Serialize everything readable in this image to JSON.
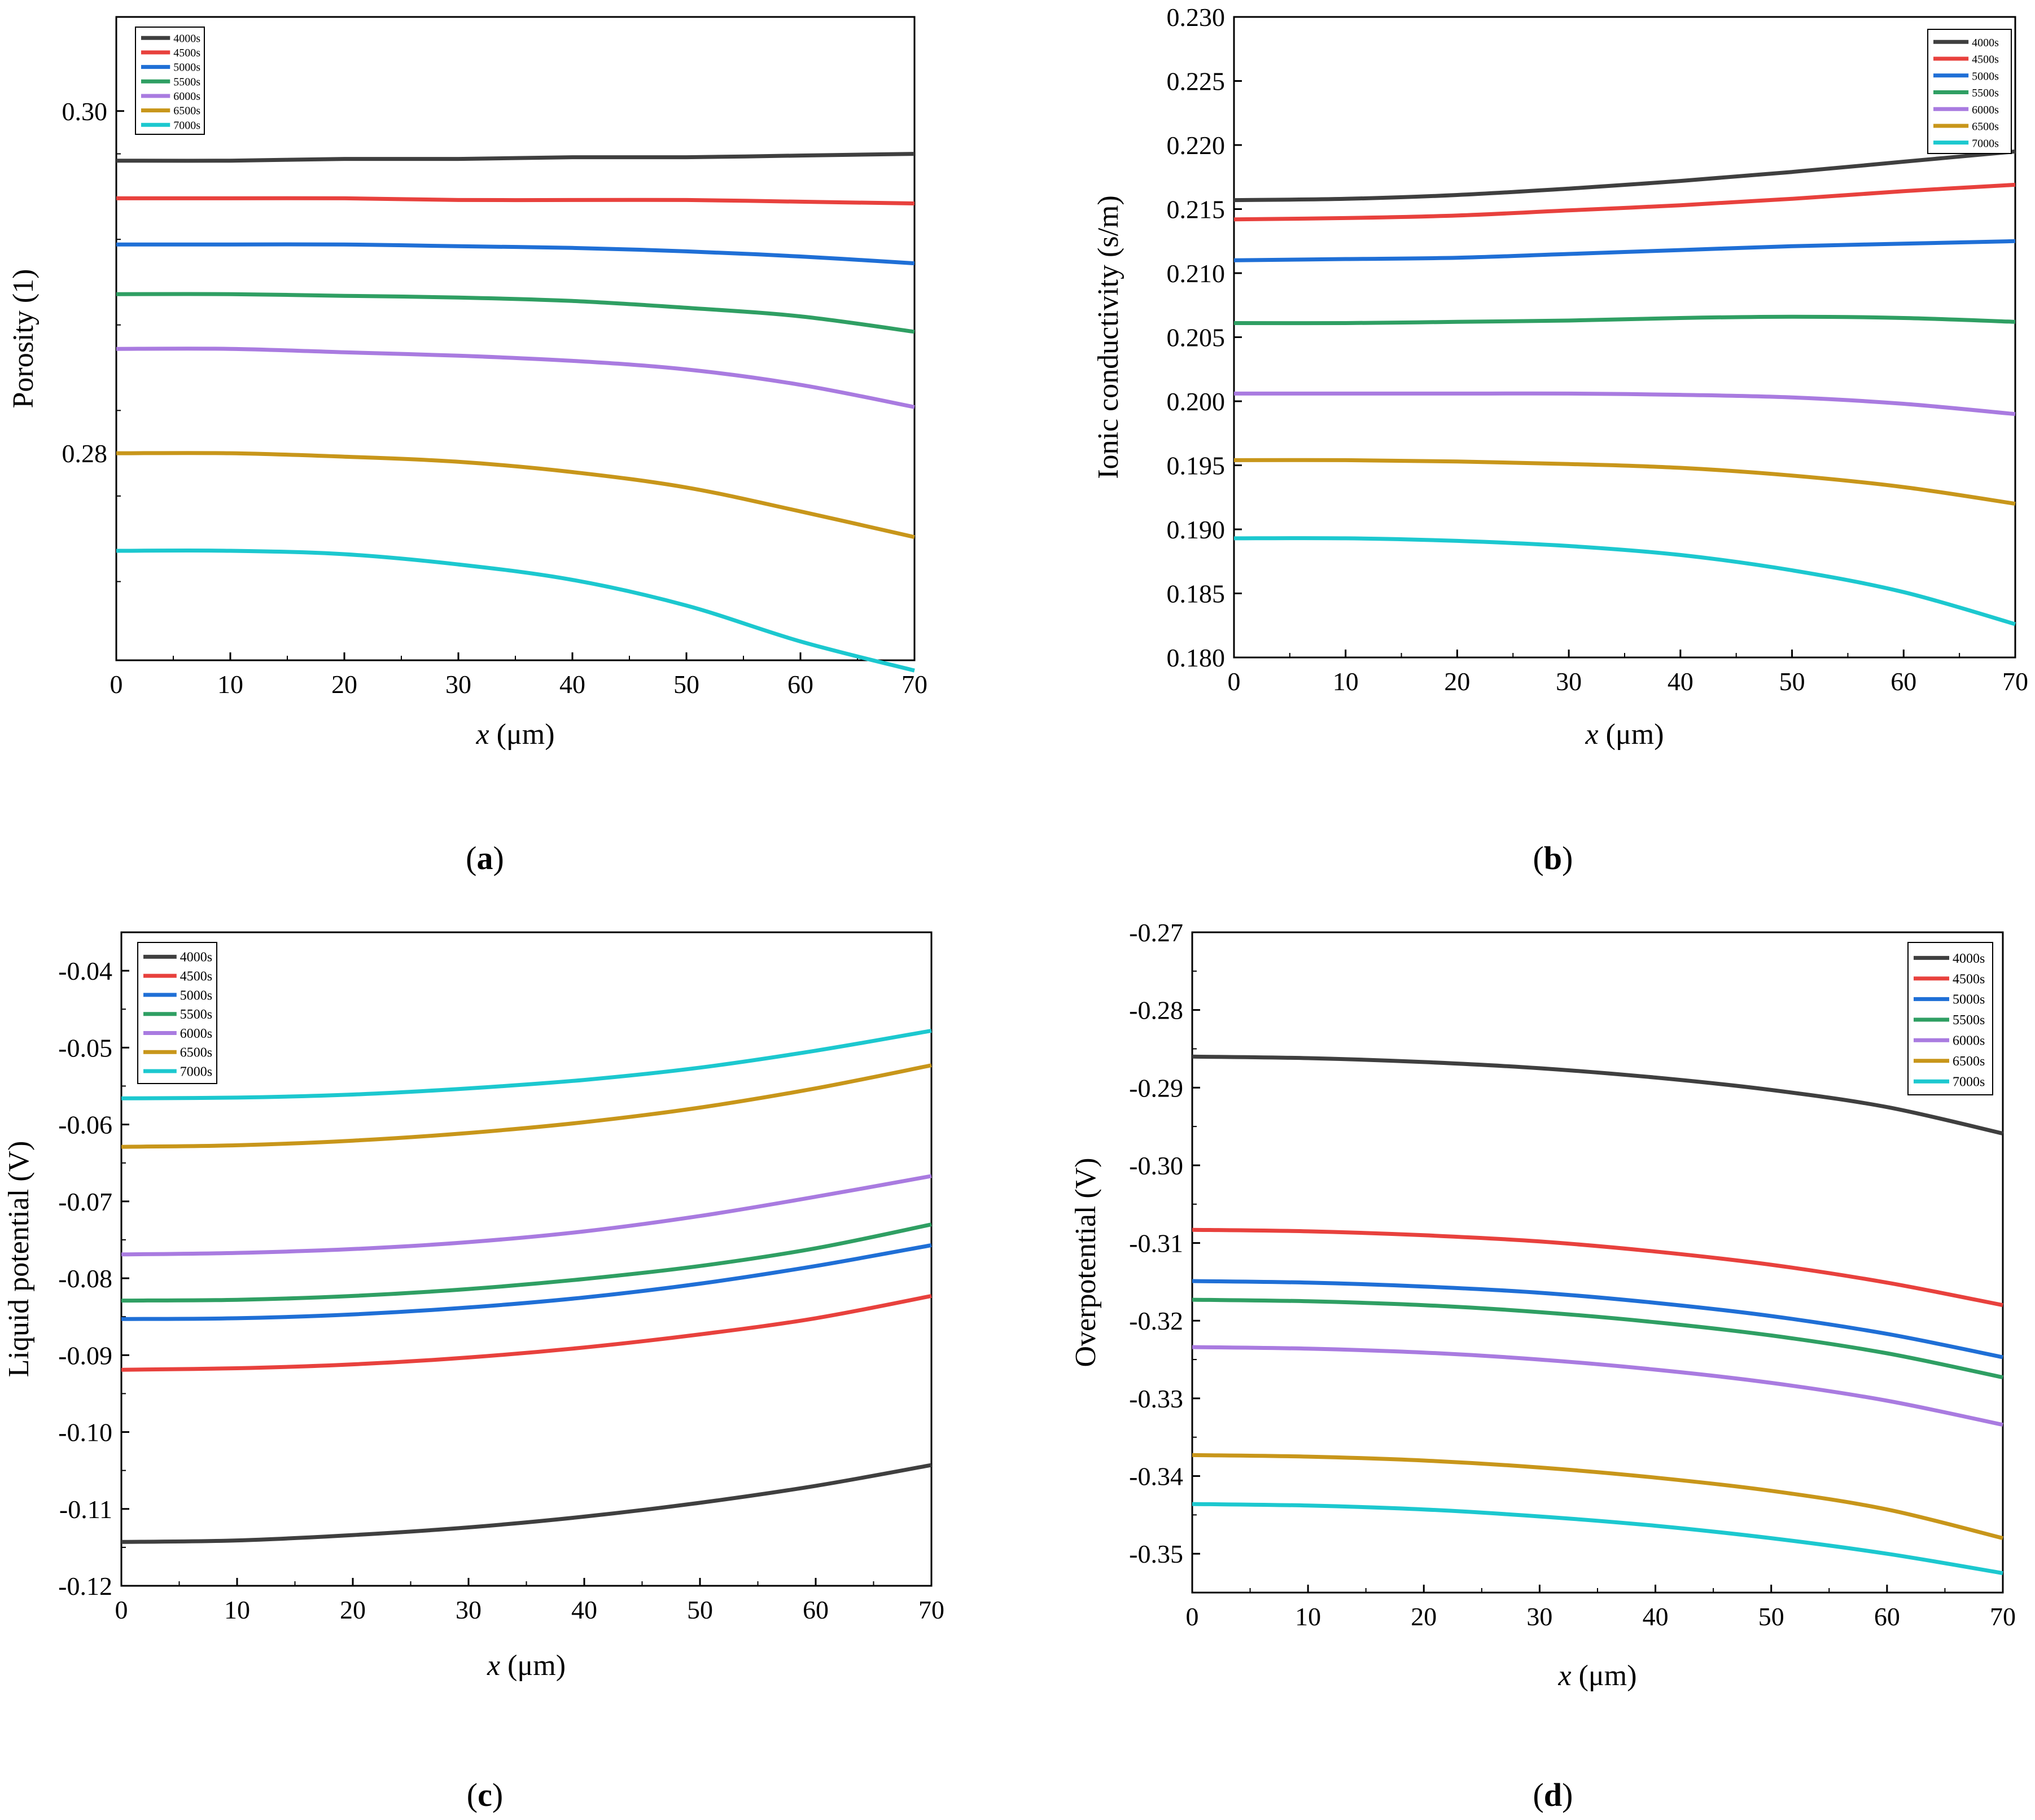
{
  "colors": {
    "4000s": "#3f3f3f",
    "4500s": "#e8413d",
    "5000s": "#1f6fd6",
    "5500s": "#2f9f63",
    "6000s": "#a97be0",
    "6500s": "#c8961a",
    "7000s": "#1cc8cf"
  },
  "chart_data": [
    {
      "id": "a",
      "type": "line",
      "panel_label": "(a)",
      "title": "",
      "xlabel": "x (μm)",
      "ylabel": "Porosity (1)",
      "xlim": [
        0,
        70
      ],
      "ylim": [
        0.2679,
        0.3055
      ],
      "xticks": [
        0,
        10,
        20,
        30,
        40,
        50,
        60,
        70
      ],
      "yticks": [
        0.28,
        0.3
      ],
      "ytick_labels": [
        "0.28",
        "0.30"
      ],
      "yminor": [
        0.2725,
        0.2775,
        0.2825,
        0.2875,
        0.2925,
        0.2975
      ],
      "legend_position": "top-left",
      "x": [
        0,
        10,
        20,
        30,
        40,
        50,
        60,
        70
      ],
      "series": [
        {
          "name": "4000s",
          "values": [
            0.2971,
            0.2971,
            0.2972,
            0.2972,
            0.2973,
            0.2973,
            0.2974,
            0.2975
          ]
        },
        {
          "name": "4500s",
          "values": [
            0.2949,
            0.2949,
            0.2949,
            0.2948,
            0.2948,
            0.2948,
            0.2947,
            0.2946
          ]
        },
        {
          "name": "5000s",
          "values": [
            0.2922,
            0.2922,
            0.2922,
            0.2921,
            0.292,
            0.2918,
            0.2915,
            0.2911
          ]
        },
        {
          "name": "5500s",
          "values": [
            0.2893,
            0.2893,
            0.2892,
            0.2891,
            0.2889,
            0.2885,
            0.288,
            0.2871
          ]
        },
        {
          "name": "6000s",
          "values": [
            0.2861,
            0.2861,
            0.2859,
            0.2857,
            0.2854,
            0.2849,
            0.284,
            0.2827
          ]
        },
        {
          "name": "6500s",
          "values": [
            0.28,
            0.28,
            0.2798,
            0.2795,
            0.2789,
            0.278,
            0.2766,
            0.2751
          ]
        },
        {
          "name": "7000s",
          "values": [
            0.2743,
            0.2743,
            0.2741,
            0.2735,
            0.2726,
            0.2711,
            0.269,
            0.2673
          ]
        }
      ]
    },
    {
      "id": "b",
      "type": "line",
      "panel_label": "(b)",
      "title": "",
      "xlabel": "x (μm)",
      "ylabel": "Ionic conductivity (s/m)",
      "xlim": [
        0,
        70
      ],
      "ylim": [
        0.18,
        0.23
      ],
      "xticks": [
        0,
        10,
        20,
        30,
        40,
        50,
        60,
        70
      ],
      "yticks": [
        0.18,
        0.185,
        0.19,
        0.195,
        0.2,
        0.205,
        0.21,
        0.215,
        0.22,
        0.225,
        0.23
      ],
      "ytick_labels": [
        "0.180",
        "0.185",
        "0.190",
        "0.195",
        "0.200",
        "0.205",
        "0.210",
        "0.215",
        "0.220",
        "0.225",
        "0.230"
      ],
      "yminor": [],
      "legend_position": "top-right",
      "x": [
        0,
        10,
        20,
        30,
        40,
        50,
        60,
        70
      ],
      "series": [
        {
          "name": "4000s",
          "values": [
            0.2157,
            0.2158,
            0.2161,
            0.2166,
            0.2172,
            0.2179,
            0.2187,
            0.2195
          ]
        },
        {
          "name": "4500s",
          "values": [
            0.2142,
            0.2143,
            0.2145,
            0.2149,
            0.2153,
            0.2158,
            0.2164,
            0.2169
          ]
        },
        {
          "name": "5000s",
          "values": [
            0.211,
            0.2111,
            0.2112,
            0.2115,
            0.2118,
            0.2121,
            0.2123,
            0.2125
          ]
        },
        {
          "name": "5500s",
          "values": [
            0.2061,
            0.2061,
            0.2062,
            0.2063,
            0.2065,
            0.2066,
            0.2065,
            0.2062
          ]
        },
        {
          "name": "6000s",
          "values": [
            0.2006,
            0.2006,
            0.2006,
            0.2006,
            0.2005,
            0.2003,
            0.1998,
            0.199
          ]
        },
        {
          "name": "6500s",
          "values": [
            0.1954,
            0.1954,
            0.1953,
            0.1951,
            0.1948,
            0.1942,
            0.1933,
            0.192
          ]
        },
        {
          "name": "7000s",
          "values": [
            0.1893,
            0.1893,
            0.1891,
            0.1887,
            0.188,
            0.1868,
            0.1851,
            0.1826
          ]
        }
      ]
    },
    {
      "id": "c",
      "type": "line",
      "panel_label": "(c)",
      "title": "",
      "xlabel": "x (μm)",
      "ylabel": "Liquid potential (V)",
      "xlim": [
        0,
        70
      ],
      "ylim": [
        -0.12,
        -0.035
      ],
      "xticks": [
        0,
        10,
        20,
        30,
        40,
        50,
        60,
        70
      ],
      "yticks": [
        -0.12,
        -0.11,
        -0.1,
        -0.09,
        -0.08,
        -0.07,
        -0.06,
        -0.05,
        -0.04
      ],
      "ytick_labels": [
        "-0.12",
        "-0.11",
        "-0.10",
        "-0.09",
        "-0.08",
        "-0.07",
        "-0.06",
        "-0.05",
        "-0.04"
      ],
      "yminor": [
        -0.115,
        -0.105,
        -0.095,
        -0.085,
        -0.075,
        -0.065,
        -0.055,
        -0.045
      ],
      "legend_position": "top-left",
      "x": [
        0,
        10,
        20,
        30,
        40,
        50,
        60,
        70
      ],
      "series": [
        {
          "name": "4000s",
          "values": [
            -0.1143,
            -0.1141,
            -0.1134,
            -0.1124,
            -0.111,
            -0.1092,
            -0.107,
            -0.1043
          ]
        },
        {
          "name": "4500s",
          "values": [
            -0.0919,
            -0.0917,
            -0.0912,
            -0.0903,
            -0.089,
            -0.0873,
            -0.0852,
            -0.0823
          ]
        },
        {
          "name": "5000s",
          "values": [
            -0.0853,
            -0.0852,
            -0.0847,
            -0.0838,
            -0.0825,
            -0.0807,
            -0.0784,
            -0.0757
          ]
        },
        {
          "name": "5500s",
          "values": [
            -0.0829,
            -0.0828,
            -0.0823,
            -0.0814,
            -0.0801,
            -0.0784,
            -0.0761,
            -0.073
          ]
        },
        {
          "name": "6000s",
          "values": [
            -0.0769,
            -0.0767,
            -0.0762,
            -0.0753,
            -0.0739,
            -0.0719,
            -0.0694,
            -0.0667
          ]
        },
        {
          "name": "6500s",
          "values": [
            -0.0629,
            -0.0627,
            -0.0621,
            -0.0611,
            -0.0597,
            -0.0578,
            -0.0553,
            -0.0523
          ]
        },
        {
          "name": "7000s",
          "values": [
            -0.0566,
            -0.0565,
            -0.0561,
            -0.0553,
            -0.0542,
            -0.0526,
            -0.0504,
            -0.0478
          ]
        }
      ]
    },
    {
      "id": "d",
      "type": "line",
      "panel_label": "(d)",
      "title": "",
      "xlabel": "x (μm)",
      "ylabel": "Overpotential (V)",
      "xlim": [
        0,
        70
      ],
      "ylim": [
        -0.355,
        -0.27
      ],
      "xticks": [
        0,
        10,
        20,
        30,
        40,
        50,
        60,
        70
      ],
      "yticks": [
        -0.35,
        -0.34,
        -0.33,
        -0.32,
        -0.31,
        -0.3,
        -0.29,
        -0.28,
        -0.27
      ],
      "ytick_labels": [
        "-0.35",
        "-0.34",
        "-0.33",
        "-0.32",
        "-0.31",
        "-0.30",
        "-0.29",
        "-0.28",
        "-0.27"
      ],
      "yminor": [
        -0.345,
        -0.335,
        -0.325,
        -0.315,
        -0.305,
        -0.295,
        -0.285,
        -0.275
      ],
      "legend_position": "top-right",
      "x": [
        0,
        10,
        20,
        30,
        40,
        50,
        60,
        70
      ],
      "series": [
        {
          "name": "4000s",
          "values": [
            -0.286,
            -0.2862,
            -0.2867,
            -0.2875,
            -0.2887,
            -0.2903,
            -0.2925,
            -0.2959
          ]
        },
        {
          "name": "4500s",
          "values": [
            -0.3083,
            -0.3085,
            -0.309,
            -0.3098,
            -0.3111,
            -0.3128,
            -0.3151,
            -0.318
          ]
        },
        {
          "name": "5000s",
          "values": [
            -0.3149,
            -0.3151,
            -0.3156,
            -0.3164,
            -0.3177,
            -0.3194,
            -0.3217,
            -0.3247
          ]
        },
        {
          "name": "5500s",
          "values": [
            -0.3173,
            -0.3175,
            -0.318,
            -0.3189,
            -0.3202,
            -0.3219,
            -0.3242,
            -0.3273
          ]
        },
        {
          "name": "6000s",
          "values": [
            -0.3234,
            -0.3236,
            -0.3241,
            -0.325,
            -0.3263,
            -0.328,
            -0.3303,
            -0.3334
          ]
        },
        {
          "name": "6500s",
          "values": [
            -0.3373,
            -0.3375,
            -0.338,
            -0.3389,
            -0.3402,
            -0.3419,
            -0.3443,
            -0.348
          ]
        },
        {
          "name": "7000s",
          "values": [
            -0.3436,
            -0.3438,
            -0.3443,
            -0.3452,
            -0.3464,
            -0.348,
            -0.35,
            -0.3525
          ]
        }
      ]
    }
  ]
}
